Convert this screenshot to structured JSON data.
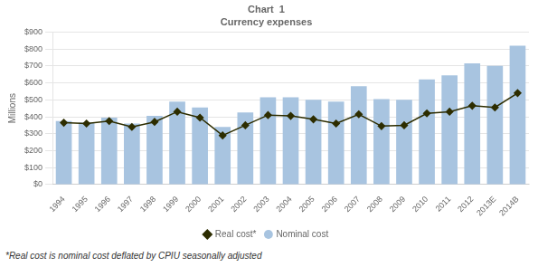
{
  "chart_data": {
    "type": "bar",
    "title": "Chart  1",
    "subtitle": "Currency expenses",
    "y_label": "Millions",
    "annotations": [
      "*Real cost is nominal cost deflated by CPIU seasonally adjusted"
    ],
    "categories": [
      "1994",
      "1995",
      "1996",
      "1997",
      "1998",
      "1999",
      "2000",
      "2001",
      "2002",
      "2003",
      "2004",
      "2005",
      "2006",
      "2007",
      "2008",
      "2009",
      "2010",
      "2011",
      "2012",
      "2013E",
      "2014B"
    ],
    "series": [
      {
        "name": "Nominal cost",
        "type": "bar",
        "color": "#A8C4E0",
        "values": [
          375,
          365,
          395,
          360,
          405,
          490,
          455,
          340,
          425,
          515,
          515,
          500,
          490,
          580,
          505,
          500,
          620,
          645,
          715,
          700,
          820
        ]
      },
      {
        "name": "Real cost*",
        "type": "line",
        "color": "#2D2D00",
        "marker": "diamond",
        "values": [
          365,
          360,
          375,
          340,
          370,
          430,
          395,
          290,
          350,
          410,
          405,
          385,
          360,
          415,
          345,
          350,
          420,
          430,
          465,
          455,
          540
        ]
      }
    ],
    "ylim": [
      0,
      900
    ],
    "yticks": [
      {
        "value": 0,
        "label": "$0"
      },
      {
        "value": 100,
        "label": "$100"
      },
      {
        "value": 200,
        "label": "$200"
      },
      {
        "value": 300,
        "label": "$300"
      },
      {
        "value": 400,
        "label": "$400"
      },
      {
        "value": 500,
        "label": "$500"
      },
      {
        "value": 600,
        "label": "$600"
      },
      {
        "value": 700,
        "label": "$700"
      },
      {
        "value": 800,
        "label": "$800"
      },
      {
        "value": 900,
        "label": "$900"
      }
    ],
    "grid": true,
    "legend": "bottom"
  }
}
